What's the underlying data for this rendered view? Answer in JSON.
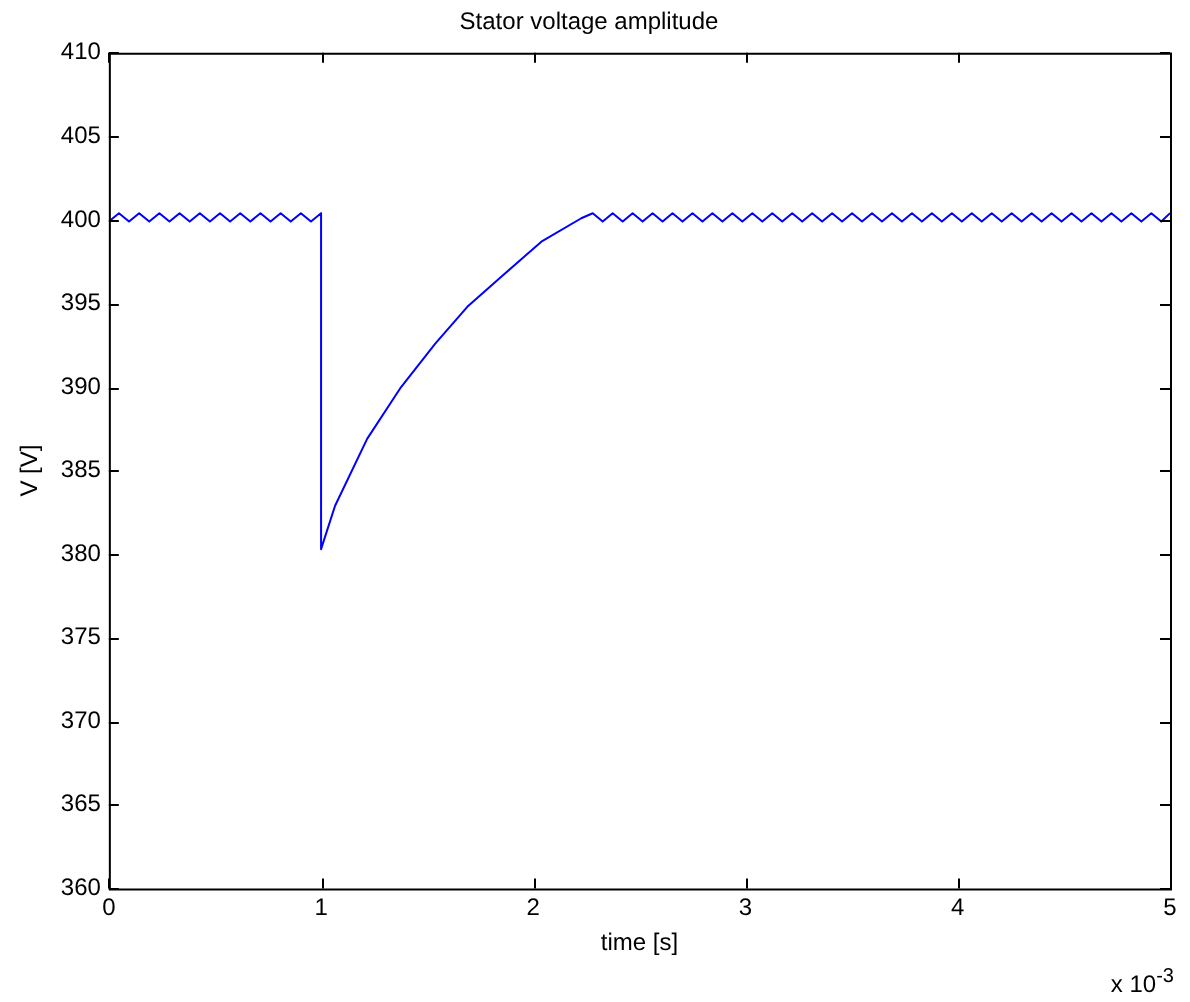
{
  "chart_data": {
    "type": "line",
    "title": "Stator voltage amplitude",
    "xlabel": "time [s]",
    "ylabel": "V [V]",
    "annotations": [
      "x 10$^{-3}$"
    ],
    "xlim": [
      0,
      5
    ],
    "xticks": [
      0,
      1,
      2,
      3,
      4,
      5
    ],
    "ylim": [
      360,
      410
    ],
    "yticks": [
      360,
      365,
      370,
      375,
      380,
      385,
      390,
      395,
      400,
      405,
      410
    ],
    "grid": false,
    "legend": false,
    "marker": "none",
    "line_style": "solid",
    "series": [
      {
        "color": "#0000ff",
        "x": [
          0,
          0.0476,
          0.0952,
          0.1429,
          0.1905,
          0.2381,
          0.2857,
          0.3333,
          0.381,
          0.4286,
          0.4762,
          0.5238,
          0.5714,
          0.619,
          0.6667,
          0.7143,
          0.7619,
          0.8095,
          0.8571,
          0.9048,
          0.9524,
          1,
          1,
          1.066,
          1.217,
          1.377,
          1.538,
          1.689,
          1.849,
          2.038,
          2.226,
          2.28,
          2.327,
          2.374,
          2.421,
          2.468,
          2.515,
          2.562,
          2.609,
          2.656,
          2.703,
          2.75,
          2.797,
          2.844,
          2.891,
          2.938,
          2.985,
          3.032,
          3.079,
          3.126,
          3.173,
          3.22,
          3.267,
          3.314,
          3.361,
          3.408,
          3.455,
          3.502,
          3.549,
          3.596,
          3.643,
          3.69,
          3.737,
          3.784,
          3.831,
          3.878,
          3.925,
          3.972,
          4.019,
          4.066,
          4.113,
          4.16,
          4.207,
          4.254,
          4.301,
          4.348,
          4.395,
          4.442,
          4.489,
          4.536,
          4.583,
          4.63,
          4.677,
          4.724,
          4.771,
          4.818,
          4.865,
          4.912,
          4.959,
          5
        ],
        "values": [
          399.9,
          400.4,
          399.9,
          400.4,
          399.9,
          400.4,
          399.9,
          400.4,
          399.9,
          400.4,
          399.9,
          400.4,
          399.9,
          400.4,
          399.9,
          400.4,
          399.9,
          400.4,
          399.9,
          400.4,
          399.9,
          400.4,
          380.3,
          382.9,
          386.9,
          390.0,
          392.6,
          394.8,
          396.6,
          398.7,
          400.1,
          400.4,
          399.9,
          400.4,
          399.9,
          400.4,
          399.9,
          400.4,
          399.9,
          400.4,
          399.9,
          400.4,
          399.9,
          400.4,
          399.9,
          400.4,
          399.9,
          400.4,
          399.9,
          400.4,
          399.9,
          400.4,
          399.9,
          400.4,
          399.9,
          400.4,
          399.9,
          400.4,
          399.9,
          400.4,
          399.9,
          400.4,
          399.9,
          400.4,
          399.9,
          400.4,
          399.9,
          400.4,
          399.9,
          400.4,
          399.9,
          400.4,
          399.9,
          400.4,
          399.9,
          400.4,
          399.9,
          400.4,
          399.9,
          400.4,
          399.9,
          400.4,
          399.9,
          400.4,
          399.9,
          400.4,
          399.9,
          400.4,
          399.9,
          400.4
        ]
      }
    ]
  }
}
